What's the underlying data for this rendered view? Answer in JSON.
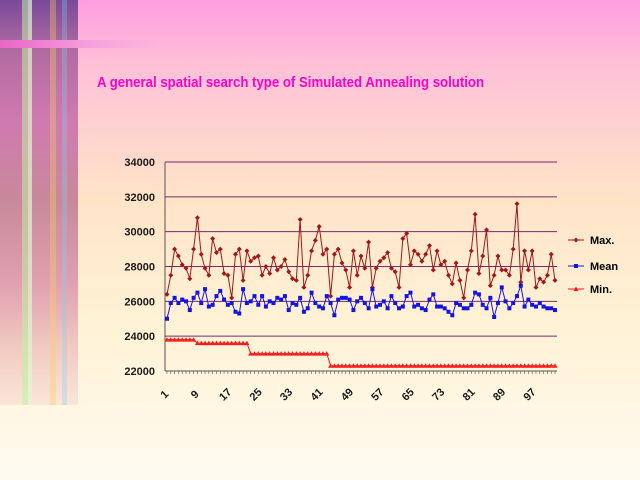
{
  "slide": {
    "title": "A general spatial search type of Simulated Annealing solution",
    "title_color": "#ff00cc"
  },
  "chart_data": {
    "type": "line",
    "ylim": [
      22000,
      34000
    ],
    "y_ticks": [
      22000,
      24000,
      26000,
      28000,
      30000,
      32000,
      34000
    ],
    "y_tick_labels": [
      "22000",
      "24000",
      "26000",
      "28000",
      "30000",
      "32000",
      "34000"
    ],
    "x_tick_labels": [
      "1",
      "9",
      "17",
      "25",
      "33",
      "41",
      "49",
      "57",
      "65",
      "73",
      "81",
      "89",
      "97"
    ],
    "x": [
      1,
      2,
      3,
      4,
      5,
      6,
      7,
      8,
      9,
      10,
      11,
      12,
      13,
      14,
      15,
      16,
      17,
      18,
      19,
      20,
      21,
      22,
      23,
      24,
      25,
      26,
      27,
      28,
      29,
      30,
      31,
      32,
      33,
      34,
      35,
      36,
      37,
      38,
      39,
      40,
      41,
      42,
      43,
      44,
      45,
      46,
      47,
      48,
      49,
      50,
      51,
      52,
      53,
      54,
      55,
      56,
      57,
      58,
      59,
      60,
      61,
      62,
      63,
      64,
      65,
      66,
      67,
      68,
      69,
      70,
      71,
      72,
      73,
      74,
      75,
      76,
      77,
      78,
      79,
      80,
      81,
      82,
      83,
      84,
      85,
      86,
      87,
      88,
      89,
      90,
      91,
      92,
      93,
      94,
      95,
      96,
      97,
      98,
      99,
      100,
      101,
      102,
      103
    ],
    "grid": true,
    "legend_position": "right",
    "series": [
      {
        "name": "Max.",
        "color": "#a01818",
        "marker": "diamond",
        "values": [
          26400,
          27500,
          29000,
          28600,
          28100,
          27900,
          27300,
          29000,
          30800,
          28700,
          27900,
          27500,
          29600,
          28800,
          29000,
          27600,
          27500,
          26200,
          28700,
          29000,
          27200,
          28900,
          28300,
          28500,
          28600,
          27500,
          28000,
          27600,
          28500,
          27800,
          28000,
          28400,
          27700,
          27300,
          27200,
          30700,
          26800,
          27500,
          28900,
          29500,
          30300,
          28700,
          29000,
          26300,
          28700,
          29000,
          28200,
          27800,
          26800,
          28900,
          27500,
          28600,
          27900,
          29400,
          26800,
          27900,
          28300,
          28500,
          28800,
          27900,
          27700,
          26800,
          29600,
          29900,
          28100,
          28900,
          28700,
          28300,
          28700,
          29200,
          27800,
          28900,
          28100,
          28300,
          27500,
          27000,
          28200,
          27200,
          26200,
          27800,
          28900,
          31000,
          27600,
          28600,
          30100,
          26900,
          27500,
          28600,
          27800,
          27800,
          27500,
          29000,
          31600,
          27100,
          28900,
          27800,
          28900,
          26800,
          27300,
          27100,
          27500,
          28700,
          27200
        ],
        "values_note": ""
      },
      {
        "name": "Mean",
        "color": "#1414e0",
        "marker": "square",
        "values": [
          25000,
          25900,
          26200,
          25900,
          26100,
          26000,
          25500,
          26200,
          26500,
          25900,
          26700,
          25700,
          25800,
          26300,
          26600,
          26100,
          25800,
          25900,
          25400,
          25300,
          26700,
          25900,
          26000,
          26300,
          25800,
          26300,
          25700,
          26000,
          25900,
          26200,
          26100,
          26300,
          25500,
          25900,
          25800,
          26200,
          25400,
          25600,
          26500,
          25900,
          25700,
          25600,
          26300,
          25900,
          25200,
          26100,
          26200,
          26200,
          26100,
          25500,
          26000,
          26200,
          25900,
          25600,
          26700,
          25700,
          25800,
          26000,
          25600,
          26300,
          25900,
          25600,
          25700,
          26300,
          26500,
          25700,
          25800,
          25600,
          25500,
          26100,
          26400,
          25700,
          25700,
          25600,
          25400,
          25200,
          25900,
          25800,
          25600,
          25600,
          25800,
          26500,
          26400,
          25800,
          25600,
          26200,
          25100,
          25900,
          26800,
          26000,
          25600,
          25900,
          26300,
          26900,
          25700,
          26100,
          25800,
          25700,
          25900,
          25700,
          25600,
          25600,
          25500
        ],
        "values_note": ""
      },
      {
        "name": "Min.",
        "color": "#ff1a1a",
        "marker": "triangle",
        "values": [
          23800,
          23800,
          23800,
          23800,
          23800,
          23800,
          23800,
          23800,
          23600,
          23600,
          23600,
          23600,
          23600,
          23600,
          23600,
          23600,
          23600,
          23600,
          23600,
          23600,
          23600,
          23600,
          23000,
          23000,
          23000,
          23000,
          23000,
          23000,
          23000,
          23000,
          23000,
          23000,
          23000,
          23000,
          23000,
          23000,
          23000,
          23000,
          23000,
          23000,
          23000,
          23000,
          23000,
          22300,
          22300,
          22300,
          22300,
          22300,
          22300,
          22300,
          22300,
          22300,
          22300,
          22300,
          22300,
          22300,
          22300,
          22300,
          22300,
          22300,
          22300,
          22300,
          22300,
          22300,
          22300,
          22300,
          22300,
          22300,
          22300,
          22300,
          22300,
          22300,
          22300,
          22300,
          22300,
          22300,
          22300,
          22300,
          22300,
          22300,
          22300,
          22300,
          22300,
          22300,
          22300,
          22300,
          22300,
          22300,
          22300,
          22300,
          22300,
          22300,
          22300,
          22300,
          22300,
          22300,
          22300,
          22300,
          22300,
          22300,
          22300,
          22300,
          22300
        ]
      }
    ]
  }
}
